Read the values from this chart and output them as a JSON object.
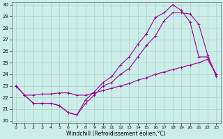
{
  "xlabel": "Windchill (Refroidissement éolien,°C)",
  "background_color": "#cceee8",
  "grid_color": "#aacccc",
  "line_color": "#990099",
  "xlim": [
    -0.5,
    23.5
  ],
  "ylim": [
    19.8,
    30.2
  ],
  "xticks": [
    0,
    1,
    2,
    3,
    4,
    5,
    6,
    7,
    8,
    9,
    10,
    11,
    12,
    13,
    14,
    15,
    16,
    17,
    18,
    19,
    20,
    21,
    22,
    23
  ],
  "yticks": [
    20,
    21,
    22,
    23,
    24,
    25,
    26,
    27,
    28,
    29,
    30
  ],
  "line1_x": [
    0,
    1,
    2,
    3,
    4,
    5,
    6,
    7,
    8,
    9,
    10,
    11,
    12,
    13,
    14,
    15,
    16,
    17,
    18,
    19,
    20,
    21,
    22,
    23
  ],
  "line1_y": [
    23.0,
    22.2,
    21.5,
    21.5,
    21.5,
    21.3,
    20.7,
    20.5,
    21.8,
    22.5,
    23.3,
    23.8,
    24.8,
    25.5,
    26.6,
    27.5,
    28.9,
    29.3,
    30.0,
    29.5,
    28.5,
    25.5,
    25.5,
    24.0
  ],
  "line2_x": [
    0,
    1,
    2,
    3,
    4,
    5,
    6,
    7,
    8,
    9,
    10,
    11,
    12,
    13,
    14,
    15,
    16,
    17,
    18,
    19,
    20,
    21,
    22,
    23
  ],
  "line2_y": [
    23.0,
    22.2,
    21.5,
    21.5,
    21.5,
    21.3,
    20.7,
    20.5,
    21.5,
    22.2,
    23.0,
    23.3,
    24.0,
    24.5,
    25.5,
    26.5,
    27.3,
    28.6,
    29.3,
    29.3,
    29.2,
    28.3,
    25.7,
    23.8
  ],
  "line3_x": [
    0,
    1,
    2,
    3,
    4,
    5,
    6,
    7,
    8,
    9,
    10,
    11,
    12,
    13,
    14,
    15,
    16,
    17,
    18,
    19,
    20,
    21,
    22,
    23
  ],
  "line3_y": [
    23.0,
    22.2,
    22.2,
    22.3,
    22.3,
    22.4,
    22.4,
    22.2,
    22.2,
    22.4,
    22.6,
    22.8,
    23.0,
    23.2,
    23.5,
    23.7,
    24.0,
    24.2,
    24.4,
    24.6,
    24.8,
    25.0,
    25.3,
    24.0
  ]
}
